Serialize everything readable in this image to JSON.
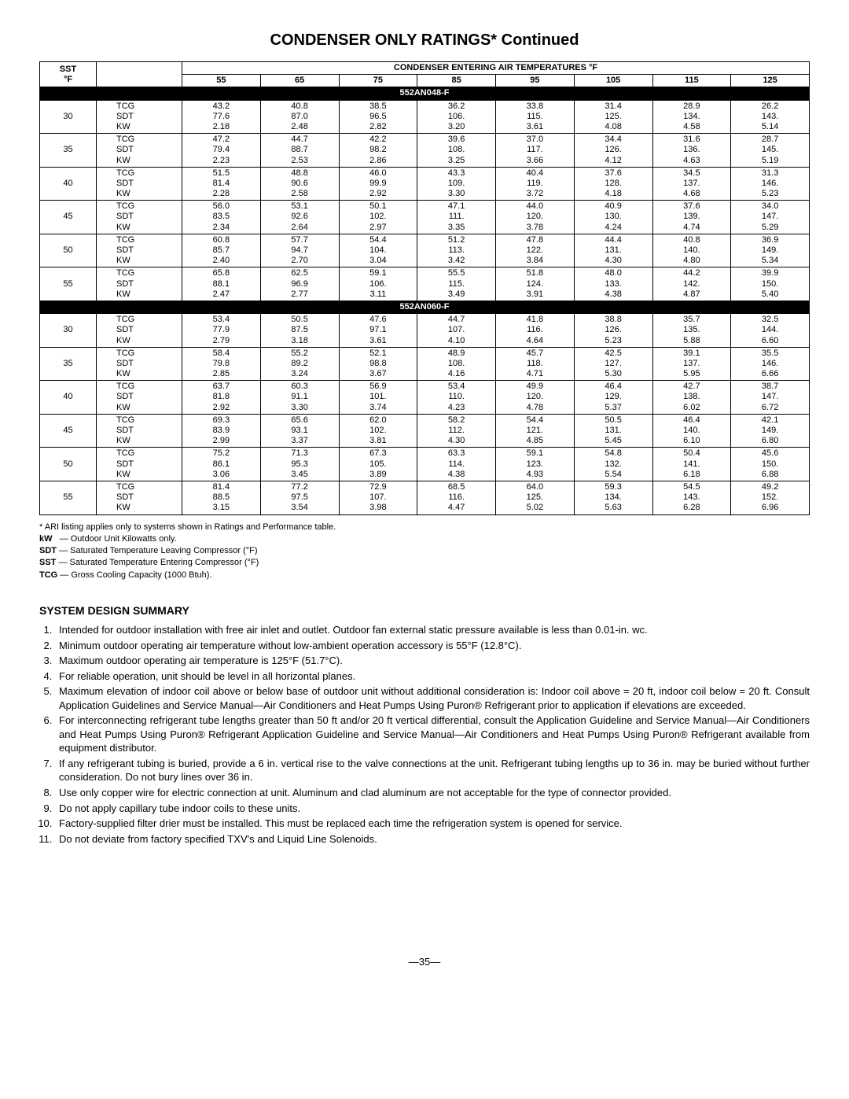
{
  "title": "CONDENSER ONLY RATINGS* Continued",
  "header": {
    "sst": "SST",
    "degF": "°F",
    "ceat": "CONDENSER ENTERING AIR TEMPERATURES °F",
    "temps": [
      "55",
      "65",
      "75",
      "85",
      "95",
      "105",
      "115",
      "125"
    ]
  },
  "param_labels": [
    "TCG",
    "SDT",
    "KW"
  ],
  "models": [
    {
      "name": "552AN048-F",
      "rows": [
        {
          "sst": "30",
          "tcg": [
            "43.2",
            "40.8",
            "38.5",
            "36.2",
            "33.8",
            "31.4",
            "28.9",
            "26.2"
          ],
          "sdt": [
            "77.6",
            "87.0",
            "96.5",
            "106.",
            "115.",
            "125.",
            "134.",
            "143."
          ],
          "kw": [
            "2.18",
            "2.48",
            "2.82",
            "3.20",
            "3.61",
            "4.08",
            "4.58",
            "5.14"
          ]
        },
        {
          "sst": "35",
          "tcg": [
            "47.2",
            "44.7",
            "42.2",
            "39.6",
            "37.0",
            "34.4",
            "31.6",
            "28.7"
          ],
          "sdt": [
            "79.4",
            "88.7",
            "98.2",
            "108.",
            "117.",
            "126.",
            "136.",
            "145."
          ],
          "kw": [
            "2.23",
            "2.53",
            "2.86",
            "3.25",
            "3.66",
            "4.12",
            "4.63",
            "5.19"
          ]
        },
        {
          "sst": "40",
          "tcg": [
            "51.5",
            "48.8",
            "46.0",
            "43.3",
            "40.4",
            "37.6",
            "34.5",
            "31.3"
          ],
          "sdt": [
            "81.4",
            "90.6",
            "99.9",
            "109.",
            "119.",
            "128.",
            "137.",
            "146."
          ],
          "kw": [
            "2.28",
            "2.58",
            "2.92",
            "3.30",
            "3.72",
            "4.18",
            "4.68",
            "5.23"
          ]
        },
        {
          "sst": "45",
          "tcg": [
            "56.0",
            "53.1",
            "50.1",
            "47.1",
            "44.0",
            "40.9",
            "37.6",
            "34.0"
          ],
          "sdt": [
            "83.5",
            "92.6",
            "102.",
            "111.",
            "120.",
            "130.",
            "139.",
            "147."
          ],
          "kw": [
            "2.34",
            "2.64",
            "2.97",
            "3.35",
            "3.78",
            "4.24",
            "4.74",
            "5.29"
          ]
        },
        {
          "sst": "50",
          "tcg": [
            "60.8",
            "57.7",
            "54.4",
            "51.2",
            "47.8",
            "44.4",
            "40.8",
            "36.9"
          ],
          "sdt": [
            "85.7",
            "94.7",
            "104.",
            "113.",
            "122.",
            "131.",
            "140.",
            "149."
          ],
          "kw": [
            "2.40",
            "2.70",
            "3.04",
            "3.42",
            "3.84",
            "4.30",
            "4.80",
            "5.34"
          ]
        },
        {
          "sst": "55",
          "tcg": [
            "65.8",
            "62.5",
            "59.1",
            "55.5",
            "51.8",
            "48.0",
            "44.2",
            "39.9"
          ],
          "sdt": [
            "88.1",
            "96.9",
            "106.",
            "115.",
            "124.",
            "133.",
            "142.",
            "150."
          ],
          "kw": [
            "2.47",
            "2.77",
            "3.11",
            "3.49",
            "3.91",
            "4.38",
            "4.87",
            "5.40"
          ]
        }
      ]
    },
    {
      "name": "552AN060-F",
      "rows": [
        {
          "sst": "30",
          "tcg": [
            "53.4",
            "50.5",
            "47.6",
            "44.7",
            "41.8",
            "38.8",
            "35.7",
            "32.5"
          ],
          "sdt": [
            "77.9",
            "87.5",
            "97.1",
            "107.",
            "116.",
            "126.",
            "135.",
            "144."
          ],
          "kw": [
            "2.79",
            "3.18",
            "3.61",
            "4.10",
            "4.64",
            "5.23",
            "5.88",
            "6.60"
          ]
        },
        {
          "sst": "35",
          "tcg": [
            "58.4",
            "55.2",
            "52.1",
            "48.9",
            "45.7",
            "42.5",
            "39.1",
            "35.5"
          ],
          "sdt": [
            "79.8",
            "89.2",
            "98.8",
            "108.",
            "118.",
            "127.",
            "137.",
            "146."
          ],
          "kw": [
            "2.85",
            "3.24",
            "3.67",
            "4.16",
            "4.71",
            "5.30",
            "5.95",
            "6.66"
          ]
        },
        {
          "sst": "40",
          "tcg": [
            "63.7",
            "60.3",
            "56.9",
            "53.4",
            "49.9",
            "46.4",
            "42.7",
            "38.7"
          ],
          "sdt": [
            "81.8",
            "91.1",
            "101.",
            "110.",
            "120.",
            "129.",
            "138.",
            "147."
          ],
          "kw": [
            "2.92",
            "3.30",
            "3.74",
            "4.23",
            "4.78",
            "5.37",
            "6.02",
            "6.72"
          ]
        },
        {
          "sst": "45",
          "tcg": [
            "69.3",
            "65.6",
            "62.0",
            "58.2",
            "54.4",
            "50.5",
            "46.4",
            "42.1"
          ],
          "sdt": [
            "83.9",
            "93.1",
            "102.",
            "112.",
            "121.",
            "131.",
            "140.",
            "149."
          ],
          "kw": [
            "2.99",
            "3.37",
            "3.81",
            "4.30",
            "4.85",
            "5.45",
            "6.10",
            "6.80"
          ]
        },
        {
          "sst": "50",
          "tcg": [
            "75.2",
            "71.3",
            "67.3",
            "63.3",
            "59.1",
            "54.8",
            "50.4",
            "45.6"
          ],
          "sdt": [
            "86.1",
            "95.3",
            "105.",
            "114.",
            "123.",
            "132.",
            "141.",
            "150."
          ],
          "kw": [
            "3.06",
            "3.45",
            "3.89",
            "4.38",
            "4.93",
            "5.54",
            "6.18",
            "6.88"
          ]
        },
        {
          "sst": "55",
          "tcg": [
            "81.4",
            "77.2",
            "72.9",
            "68.5",
            "64.0",
            "59.3",
            "54.5",
            "49.2"
          ],
          "sdt": [
            "88.5",
            "97.5",
            "107.",
            "116.",
            "125.",
            "134.",
            "143.",
            "152."
          ],
          "kw": [
            "3.15",
            "3.54",
            "3.98",
            "4.47",
            "5.02",
            "5.63",
            "6.28",
            "6.96"
          ]
        }
      ]
    }
  ],
  "footnotes": {
    "ari": "* ARI listing applies only to systems shown in Ratings and Performance table.",
    "kw_lbl": "kW",
    "kw_txt": "— Outdoor Unit Kilowatts only.",
    "sdt_lbl": "SDT",
    "sdt_txt": "— Saturated Temperature Leaving Compressor (°F)",
    "sst_lbl": "SST",
    "sst_txt": "— Saturated Temperature Entering Compressor (°F)",
    "tcg_lbl": "TCG",
    "tcg_txt": "— Gross Cooling Capacity (1000 Btuh)."
  },
  "design": {
    "heading": "SYSTEM DESIGN SUMMARY",
    "items": [
      "Intended for outdoor installation with free air inlet and outlet. Outdoor fan external static pressure available is less than 0.01-in. wc.",
      "Minimum outdoor operating air temperature without low-ambient operation accessory is 55°F (12.8°C).",
      "Maximum outdoor operating air temperature is 125°F (51.7°C).",
      "For reliable operation, unit should be level in all horizontal planes.",
      "Maximum elevation of indoor coil above or below base of outdoor unit without additional consideration is: Indoor coil above = 20 ft, indoor coil below = 20 ft. Consult Application Guidelines and Service Manual—Air Conditioners and Heat Pumps Using Puron® Refrigerant prior to application if elevations are exceeded.",
      "For interconnecting refrigerant tube lengths greater than 50 ft and/or 20 ft vertical differential, consult the Application Guideline and Service Manual—Air Conditioners and Heat Pumps Using Puron® Refrigerant Application Guideline and Service Manual—Air Conditioners and Heat Pumps Using Puron® Refrigerant available from equipment distributor.",
      "If any refrigerant tubing is buried, provide a 6 in. vertical rise to the valve connections at the unit. Refrigerant tubing lengths up to 36 in. may be buried without further consideration. Do not bury lines over 36 in.",
      "Use only copper wire for electric connection at unit. Aluminum and clad aluminum are not acceptable for the type of connector provided.",
      "Do not apply capillary tube indoor coils to these units.",
      "Factory-supplied filter drier must be installed. This must be replaced each time the refrigeration system is opened for service.",
      "Do not deviate from factory specified TXV's and Liquid Line Solenoids."
    ]
  },
  "page_number": "—35—"
}
